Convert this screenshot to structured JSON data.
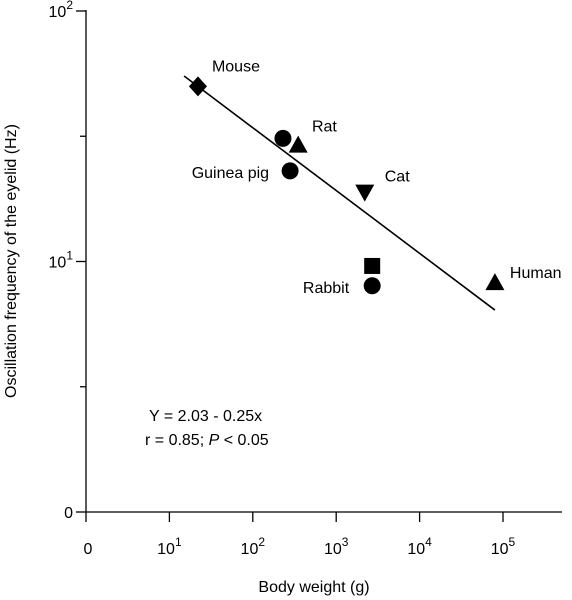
{
  "chart_data": {
    "type": "scatter",
    "title": "",
    "xlabel": "Body weight (g)",
    "ylabel": "Oscillation frequency of the eyelid (Hz)",
    "x_scale": "log",
    "y_scale": "log",
    "x_ticks": [
      {
        "value": 1,
        "base": "0",
        "exp": ""
      },
      {
        "value": 10,
        "base": "10",
        "exp": "1"
      },
      {
        "value": 100,
        "base": "10",
        "exp": "2"
      },
      {
        "value": 1000,
        "base": "10",
        "exp": "3"
      },
      {
        "value": 10000,
        "base": "10",
        "exp": "4"
      },
      {
        "value": 100000,
        "base": "10",
        "exp": "5"
      }
    ],
    "y_ticks": [
      {
        "value": 1,
        "base": "0",
        "exp": ""
      },
      {
        "value": 10,
        "base": "10",
        "exp": "1"
      },
      {
        "value": 100,
        "base": "10",
        "exp": "2"
      }
    ],
    "points": [
      {
        "label": "Mouse",
        "marker": "diamond",
        "x": 22,
        "y": 50
      },
      {
        "label": "Rat",
        "marker": "circle",
        "x": 230,
        "y": 31
      },
      {
        "label": "",
        "marker": "triangle-up",
        "x": 350,
        "y": 29
      },
      {
        "label": "Guinea pig",
        "marker": "circle",
        "x": 280,
        "y": 23
      },
      {
        "label": "Cat",
        "marker": "triangle-down",
        "x": 2200,
        "y": 19
      },
      {
        "label": "",
        "marker": "square",
        "x": 2700,
        "y": 9.6
      },
      {
        "label": "Rabbit",
        "marker": "circle",
        "x": 2700,
        "y": 8
      },
      {
        "label": "Human",
        "marker": "triangle-up",
        "x": 80000,
        "y": 8.2
      }
    ],
    "fit_line": {
      "x": [
        15,
        80000
      ],
      "y": [
        55,
        6.4
      ]
    },
    "annotations": [
      {
        "text": "Y = 2.03 - 0.25x"
      },
      {
        "text_parts": [
          "r = 0.85; ",
          "P",
          " < 0.05"
        ]
      }
    ],
    "grid": false,
    "legend": "none"
  }
}
